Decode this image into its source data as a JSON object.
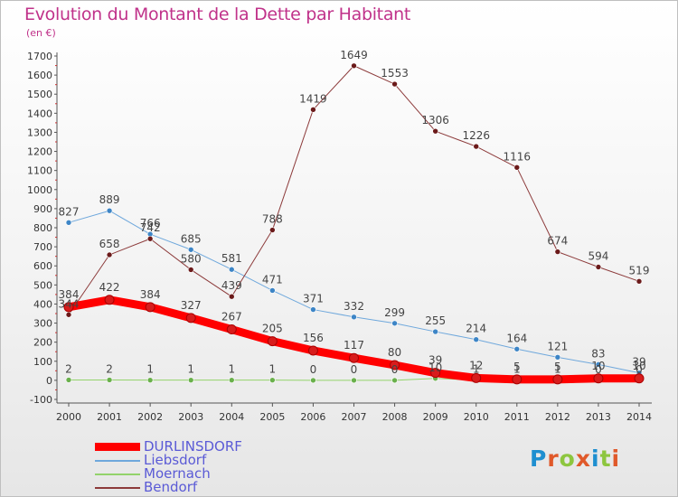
{
  "title": "Evolution du Montant de la Dette par Habitant",
  "subtitle": "(en €)",
  "logo": {
    "text": "Proxiti",
    "colors": [
      "#1f8fd0",
      "#e0592a",
      "#8dc63f",
      "#e0592a",
      "#1f8fd0",
      "#8dc63f",
      "#e0592a"
    ]
  },
  "chart_data": {
    "type": "line",
    "x": [
      "2000",
      "2001",
      "2002",
      "2003",
      "2004",
      "2005",
      "2006",
      "2007",
      "2008",
      "2009",
      "2010",
      "2011",
      "2012",
      "2013",
      "2014"
    ],
    "ylim": [
      -100,
      1700
    ],
    "yticks": [
      -100,
      0,
      100,
      200,
      300,
      400,
      500,
      600,
      700,
      800,
      900,
      1000,
      1100,
      1200,
      1300,
      1400,
      1500,
      1600,
      1700
    ],
    "grid": false,
    "legend": "bottom-left",
    "series": [
      {
        "name": "DURLINSDORF",
        "color": "#ff0000",
        "marker": "#d81c1c",
        "width": 9,
        "values": [
          384,
          422,
          384,
          327,
          267,
          205,
          156,
          117,
          80,
          39,
          12,
          5,
          5,
          10,
          10
        ],
        "labels": [
          "384",
          "422",
          "384",
          "327",
          "267",
          "205",
          "156",
          "117",
          "80",
          "39",
          "12",
          "5",
          "5",
          "10",
          "10"
        ]
      },
      {
        "name": "Liebsdorf",
        "color": "#6fa8dc",
        "marker": "#3d85c6",
        "width": 1,
        "values": [
          827,
          889,
          766,
          685,
          581,
          471,
          371,
          332,
          299,
          255,
          214,
          164,
          121,
          83,
          39
        ],
        "labels": [
          "827",
          "889",
          "766",
          "685",
          "581",
          "471",
          "371",
          "332",
          "299",
          "255",
          "214",
          "164",
          "121",
          "83",
          "39"
        ]
      },
      {
        "name": "Moernach",
        "color": "#93d36b",
        "marker": "#6ab04c",
        "width": 1,
        "values": [
          2,
          2,
          1,
          1,
          1,
          1,
          0,
          0,
          0,
          10,
          1,
          1,
          1,
          0,
          0
        ],
        "labels": [
          "2",
          "2",
          "1",
          "1",
          "1",
          "1",
          "0",
          "0",
          "0",
          "10",
          "1",
          "1",
          "1",
          "0",
          "0"
        ]
      },
      {
        "name": "Bendorf",
        "color": "#8c3a3a",
        "marker": "#6b1a1a",
        "width": 1,
        "values": [
          344,
          658,
          742,
          580,
          439,
          788,
          1419,
          1649,
          1553,
          1306,
          1226,
          1116,
          674,
          594,
          519
        ],
        "labels": [
          "344",
          "658",
          "742",
          "580",
          "439",
          "788",
          "1419",
          "1649",
          "1553",
          "1306",
          "1226",
          "1116",
          "674",
          "594",
          "519"
        ]
      }
    ]
  }
}
